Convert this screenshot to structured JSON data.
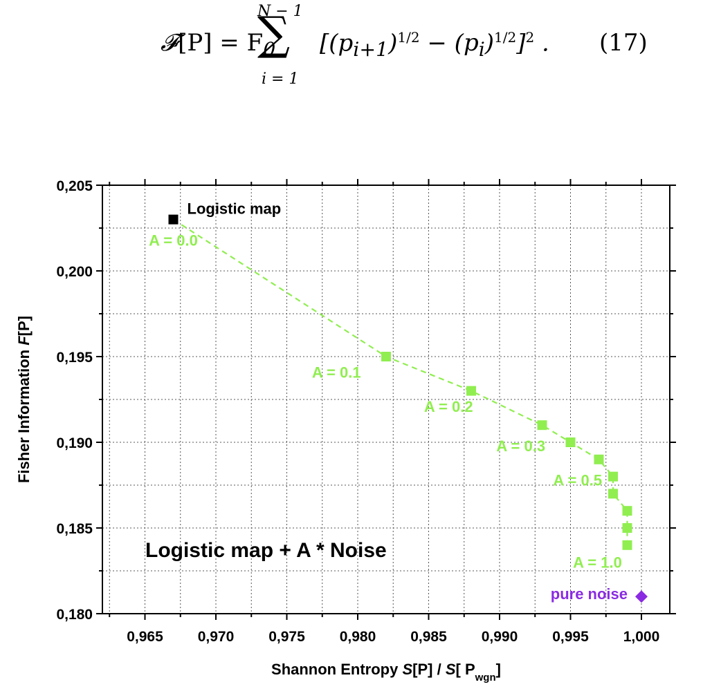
{
  "equation": {
    "lhs_symbol": "𝓕",
    "lhs_arg": "[P] = F",
    "lhs_sub": "0",
    "sum_upper": "N − 1",
    "sum_sign": "∑",
    "sum_lower": "i = 1",
    "rhs": "[(p_{i+1})^{1/2} − (p_i)^{1/2}]^2 .",
    "number": "(17)"
  },
  "chart_data": {
    "type": "scatter",
    "xlabel": "Shannon  Entropy  S[P] / S[ P_wgn]",
    "ylabel": "Fisher  Information  F[P]",
    "xlim": [
      0.962,
      1.002
    ],
    "ylim": [
      0.18,
      0.205
    ],
    "xticks": [
      "0,965",
      "0,970",
      "0,975",
      "0,980",
      "0,985",
      "0,990",
      "0,995",
      "1,000"
    ],
    "yticks": [
      "0,180",
      "0,185",
      "0,190",
      "0,195",
      "0,200",
      "0,205"
    ],
    "grid": true,
    "colors": {
      "noise_series": "#90ee50",
      "logistic_point": "#000000",
      "pure_noise": "#8a2be2"
    },
    "series": [
      {
        "marker": "square",
        "line": "dashed",
        "points": [
          {
            "x": 0.982,
            "y": 0.195
          },
          {
            "x": 0.988,
            "y": 0.193
          },
          {
            "x": 0.993,
            "y": 0.191
          },
          {
            "x": 0.995,
            "y": 0.19
          },
          {
            "x": 0.997,
            "y": 0.189
          },
          {
            "x": 0.998,
            "y": 0.188
          },
          {
            "x": 0.998,
            "y": 0.187
          },
          {
            "x": 0.999,
            "y": 0.186
          },
          {
            "x": 0.999,
            "y": 0.185
          },
          {
            "x": 0.999,
            "y": 0.184
          }
        ]
      }
    ],
    "special_points": [
      {
        "label": "Logistic map",
        "x": 0.967,
        "y": 0.203,
        "marker": "square",
        "color": "#000000"
      },
      {
        "label": "pure noise",
        "x": 1.0,
        "y": 0.181,
        "marker": "diamond",
        "color": "#8a2be2"
      }
    ],
    "annotations": [
      {
        "text": "A = 0.0",
        "x": 0.967,
        "y": 0.2018
      },
      {
        "text": "A = 0.1",
        "x": 0.9785,
        "y": 0.1941
      },
      {
        "text": "A = 0.2",
        "x": 0.9864,
        "y": 0.1921
      },
      {
        "text": "A = 0.3",
        "x": 0.9915,
        "y": 0.1898
      },
      {
        "text": "A = 0.5",
        "x": 0.9955,
        "y": 0.1878
      },
      {
        "text": "A = 1.0",
        "x": 0.9969,
        "y": 0.183
      }
    ],
    "inset_text": "Logistic map + A * Noise"
  }
}
